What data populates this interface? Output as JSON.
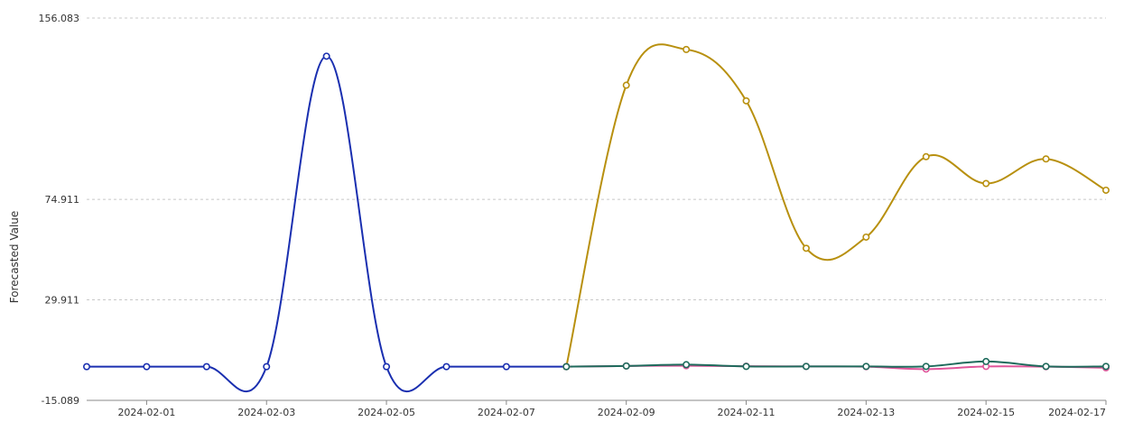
{
  "chart_data": {
    "type": "line",
    "ylabel": "Forecasted Value",
    "xlabel": "",
    "ylim": [
      -15.089,
      156.083
    ],
    "yticks": [
      156.083,
      74.911,
      29.911,
      -15.089
    ],
    "ytick_labels": [
      "156.083",
      "74.911",
      "29.911",
      "-15.089"
    ],
    "x": [
      "2024-01-31",
      "2024-02-01",
      "2024-02-02",
      "2024-02-03",
      "2024-02-04",
      "2024-02-05",
      "2024-02-06",
      "2024-02-07",
      "2024-02-08",
      "2024-02-09",
      "2024-02-10",
      "2024-02-11",
      "2024-02-12",
      "2024-02-13",
      "2024-02-14",
      "2024-02-15",
      "2024-02-16",
      "2024-02-17"
    ],
    "xtick_labels": [
      "2024-02-01",
      "2024-02-03",
      "2024-02-05",
      "2024-02-07",
      "2024-02-09",
      "2024-02-11",
      "2024-02-13",
      "2024-02-15",
      "2024-02-17"
    ],
    "grid": true,
    "series": [
      {
        "color": "#1a2fb0",
        "values": [
          0,
          0,
          0,
          0,
          139,
          0,
          0,
          0,
          0,
          null,
          null,
          null,
          null,
          null,
          null,
          null,
          null,
          null
        ]
      },
      {
        "color": "#b8900f",
        "values": [
          null,
          null,
          null,
          null,
          null,
          null,
          null,
          null,
          0,
          126,
          142,
          119,
          53,
          58,
          94,
          82,
          93,
          79
        ]
      },
      {
        "color": "#e0559a",
        "values": [
          null,
          null,
          null,
          null,
          null,
          null,
          null,
          null,
          0,
          0.3,
          0.4,
          0.2,
          0.1,
          0,
          -1.1,
          0.1,
          0,
          -0.5
        ]
      },
      {
        "color": "#1e6b5c",
        "values": [
          null,
          null,
          null,
          null,
          null,
          null,
          null,
          null,
          0,
          0.3,
          0.9,
          0.1,
          0.1,
          0.1,
          0.1,
          2.3,
          0.1,
          0.1
        ]
      }
    ]
  }
}
